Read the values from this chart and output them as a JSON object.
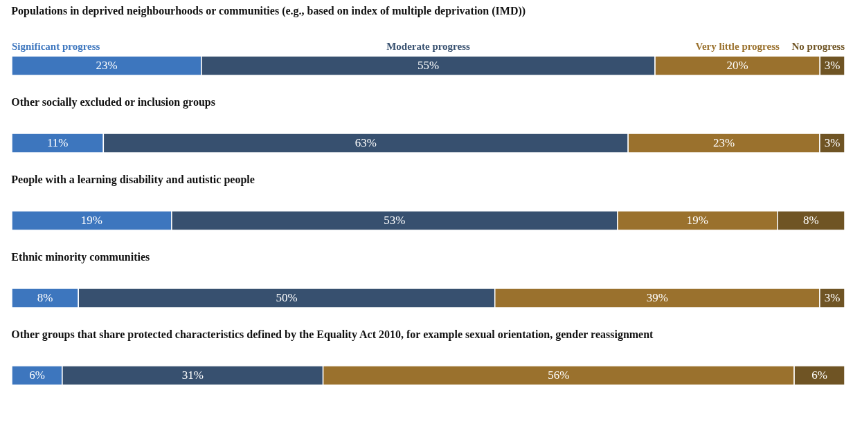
{
  "chart_data": [
    {
      "type": "bar",
      "orientation": "horizontal",
      "stacked": true,
      "legend": "top",
      "title": "Populations in deprived neighbourhoods or communities (e.g., based on index of multiple deprivation (IMD))",
      "categories": [
        null
      ],
      "series": [
        {
          "name": "Significant progress",
          "color": "#3d76be",
          "values": [
            23
          ],
          "value_labels": [
            "23%"
          ]
        },
        {
          "name": "Moderate progress",
          "color": "#37506f",
          "values": [
            55
          ],
          "value_labels": [
            "55%"
          ]
        },
        {
          "name": "Very little progress",
          "color": "#9a712d",
          "values": [
            20
          ],
          "value_labels": [
            "20%"
          ]
        },
        {
          "name": "No progress",
          "color": "#6f5424",
          "values": [
            3
          ],
          "value_labels": [
            "3%"
          ]
        }
      ]
    },
    {
      "type": "bar",
      "orientation": "horizontal",
      "stacked": true,
      "title": "Other socially excluded or inclusion groups",
      "categories": [
        null
      ],
      "series": [
        {
          "color": "#3d76be",
          "values": [
            11
          ],
          "value_labels": [
            "11%"
          ]
        },
        {
          "color": "#37506f",
          "values": [
            63
          ],
          "value_labels": [
            "63%"
          ]
        },
        {
          "color": "#9a712d",
          "values": [
            23
          ],
          "value_labels": [
            "23%"
          ]
        },
        {
          "color": "#6f5424",
          "values": [
            3
          ],
          "value_labels": [
            "3%"
          ]
        }
      ]
    },
    {
      "type": "bar",
      "orientation": "horizontal",
      "stacked": true,
      "title": "People with a learning disability and autistic people",
      "categories": [
        null
      ],
      "series": [
        {
          "color": "#3d76be",
          "values": [
            19
          ],
          "value_labels": [
            "19%"
          ]
        },
        {
          "color": "#37506f",
          "values": [
            53
          ],
          "value_labels": [
            "53%"
          ]
        },
        {
          "color": "#9a712d",
          "values": [
            19
          ],
          "value_labels": [
            "19%"
          ]
        },
        {
          "color": "#6f5424",
          "values": [
            8
          ],
          "value_labels": [
            "8%"
          ]
        }
      ]
    },
    {
      "type": "bar",
      "orientation": "horizontal",
      "stacked": true,
      "title": "Ethnic minority communities",
      "categories": [
        null
      ],
      "series": [
        {
          "color": "#3d76be",
          "values": [
            8
          ],
          "value_labels": [
            "8%"
          ]
        },
        {
          "color": "#37506f",
          "values": [
            50
          ],
          "value_labels": [
            "50%"
          ]
        },
        {
          "color": "#9a712d",
          "values": [
            39
          ],
          "value_labels": [
            "39%"
          ]
        },
        {
          "color": "#6f5424",
          "values": [
            3
          ],
          "value_labels": [
            "3%"
          ]
        }
      ]
    },
    {
      "type": "bar",
      "orientation": "horizontal",
      "stacked": true,
      "title": "Other groups that share protected characteristics defined by the Equality Act 2010, for example sexual orientation, gender reassignment",
      "categories": [
        null
      ],
      "series": [
        {
          "color": "#3d76be",
          "values": [
            6
          ],
          "value_labels": [
            "6%"
          ]
        },
        {
          "color": "#37506f",
          "values": [
            31
          ],
          "value_labels": [
            "31%"
          ]
        },
        {
          "color": "#9a712d",
          "values": [
            56
          ],
          "value_labels": [
            "56%"
          ]
        },
        {
          "color": "#6f5424",
          "values": [
            6
          ],
          "value_labels": [
            "6%"
          ]
        }
      ]
    }
  ]
}
